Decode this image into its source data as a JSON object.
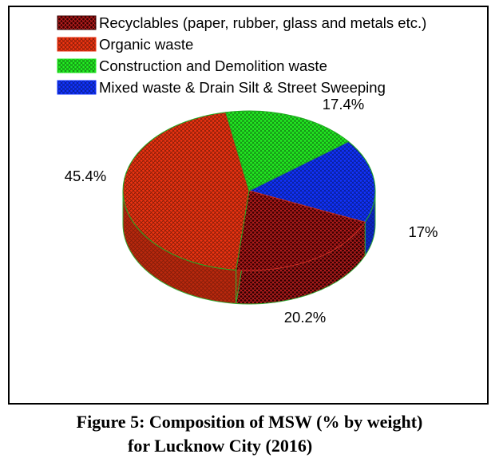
{
  "chart_data": {
    "type": "pie",
    "style": "3d",
    "categories": [
      "Recyclables (paper, rubber, glass and metals etc.)",
      "Organic waste",
      "Construction and Demolition waste",
      "Mixed waste & Drain Silt  & Street Sweeping"
    ],
    "values": [
      20.2,
      45.4,
      17.4,
      17
    ],
    "value_labels": [
      "20.2%",
      "45.4%",
      "17.4%",
      "17%"
    ],
    "colors": [
      "#3a0000",
      "#ee3311",
      "#22ee22",
      "#1133ff"
    ],
    "legend_position": "top",
    "pattern": "crosshatch"
  },
  "caption": {
    "line1": "Figure 5: Composition of MSW (% by weight)",
    "line2": "for Lucknow City (2016)"
  }
}
